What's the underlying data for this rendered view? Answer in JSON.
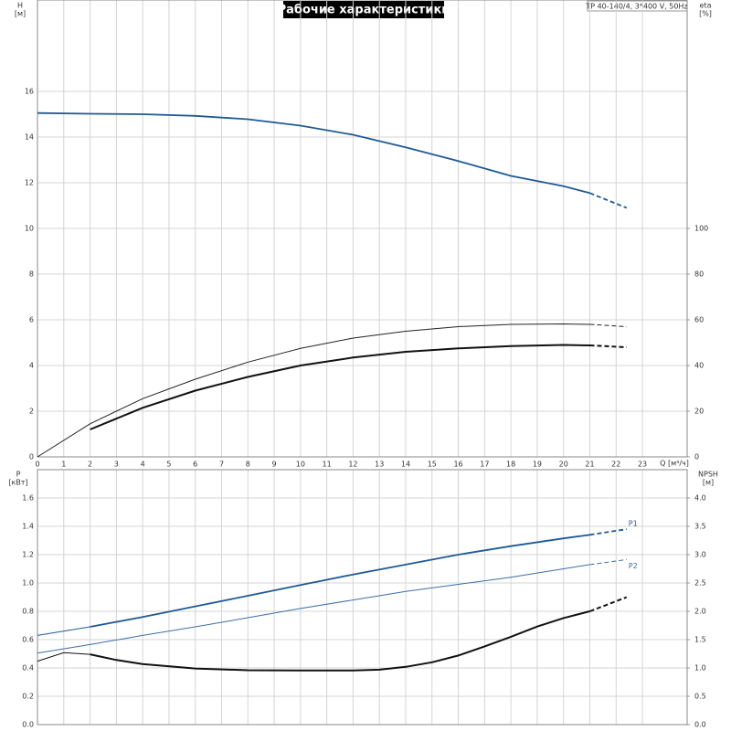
{
  "chart_data": [
    {
      "type": "line",
      "title": "Рабочие характеристики",
      "subtitle": "TP 40-140/4, 3*400 V, 50Hz",
      "y_label": "H",
      "y_unit": "[м]",
      "y2_label": "eta",
      "y2_unit": "[%]",
      "x_label": "Q [м³/ч]",
      "xlim": [
        0,
        24.7
      ],
      "xticks": [
        0,
        1,
        2,
        3,
        4,
        5,
        6,
        7,
        8,
        9,
        10,
        11,
        12,
        13,
        14,
        15,
        16,
        17,
        18,
        19,
        20,
        21,
        22,
        23
      ],
      "ylim": [
        0,
        20
      ],
      "yticks": [
        0,
        2,
        4,
        6,
        8,
        10,
        12,
        14,
        16
      ],
      "y2lim": [
        0,
        200
      ],
      "y2ticks": [
        0,
        20,
        40,
        60,
        80,
        100
      ],
      "grid": true,
      "series": [
        {
          "color": "#1f5a96",
          "segments": [
            {
              "x": [
                0,
                2,
                4,
                6,
                8,
                10,
                12,
                14,
                16,
                18,
                20,
                21
              ],
              "values": [
                15.05,
                15.02,
                15.0,
                14.93,
                14.78,
                14.5,
                14.1,
                13.55,
                12.95,
                12.3,
                11.85,
                11.55
              ],
              "width": 1.8,
              "dash": false
            },
            {
              "x": [
                21,
                22.4
              ],
              "values": [
                11.55,
                10.9
              ],
              "width": 1.8,
              "dash": true
            }
          ]
        },
        {
          "color": "#222222",
          "axis": "y2",
          "segments": [
            {
              "x": [
                0,
                2,
                4,
                6,
                8,
                10,
                12,
                14,
                16,
                18,
                20,
                21
              ],
              "values": [
                0,
                14.5,
                25.5,
                34,
                41.5,
                47.5,
                52,
                55,
                57,
                58,
                58.2,
                58
              ],
              "width": 1,
              "dash": false
            },
            {
              "x": [
                21,
                22.4
              ],
              "values": [
                58,
                57
              ],
              "width": 1,
              "dash": true
            }
          ]
        },
        {
          "color": "#111111",
          "axis": "y2",
          "segments": [
            {
              "x": [
                2,
                4,
                6,
                8,
                10,
                12,
                14,
                16,
                18,
                20,
                21
              ],
              "values": [
                12,
                21.5,
                29,
                35,
                40,
                43.5,
                46,
                47.5,
                48.5,
                49,
                48.8
              ],
              "width": 2,
              "dash": false
            },
            {
              "x": [
                21,
                22.4
              ],
              "values": [
                48.8,
                48
              ],
              "width": 2,
              "dash": true
            }
          ]
        }
      ]
    },
    {
      "type": "line",
      "y_label": "P",
      "y_unit": "[кВт]",
      "y2_label": "NPSH",
      "y2_unit": "[м]",
      "ylim": [
        0,
        1.8
      ],
      "yticks": [
        {
          "value": 0,
          "label": "0.0"
        },
        0.2,
        0.4,
        0.6,
        0.8,
        {
          "value": 1,
          "label": "1.0"
        },
        1.2,
        1.4,
        1.6
      ],
      "y2lim": [
        0,
        4.5
      ],
      "y2ticks": [
        {
          "value": 0,
          "label": "0.0"
        },
        0.5,
        {
          "value": 1,
          "label": "1.0"
        },
        1.5,
        {
          "value": 2,
          "label": "2.0"
        },
        2.5,
        {
          "value": 3,
          "label": "3.0"
        },
        3.5,
        {
          "value": 4,
          "label": "4.0"
        }
      ],
      "grid": true,
      "series": [
        {
          "name": "P1",
          "color": "#1f5a96",
          "segments": [
            {
              "x": [
                0,
                2
              ],
              "values": [
                0.63,
                0.69
              ],
              "width": 1,
              "dash": false
            },
            {
              "x": [
                2,
                4,
                6,
                8,
                10,
                12,
                14,
                16,
                18,
                20,
                21
              ],
              "values": [
                0.69,
                0.76,
                0.835,
                0.91,
                0.985,
                1.06,
                1.13,
                1.2,
                1.26,
                1.315,
                1.34
              ],
              "width": 1.8,
              "dash": false
            },
            {
              "x": [
                21,
                22.4
              ],
              "values": [
                1.34,
                1.38
              ],
              "width": 1.8,
              "dash": true
            }
          ]
        },
        {
          "name": "P2",
          "color": "#3a6fa8",
          "segments": [
            {
              "x": [
                0,
                2,
                4,
                6,
                8,
                10,
                12,
                14,
                16,
                18,
                20,
                21
              ],
              "values": [
                0.505,
                0.565,
                0.63,
                0.69,
                0.755,
                0.82,
                0.88,
                0.94,
                0.99,
                1.04,
                1.1,
                1.13
              ],
              "width": 1,
              "dash": false
            },
            {
              "x": [
                21,
                22.4
              ],
              "values": [
                1.13,
                1.165
              ],
              "width": 1,
              "dash": true
            }
          ]
        },
        {
          "color": "#111111",
          "axis": "y2",
          "segments": [
            {
              "x": [
                0,
                1,
                2
              ],
              "values": [
                1.12,
                1.27,
                1.24
              ],
              "width": 1,
              "dash": false
            },
            {
              "x": [
                2,
                3,
                4,
                6,
                8,
                10,
                12,
                13,
                14,
                15,
                16,
                17,
                18,
                19,
                20,
                21
              ],
              "values": [
                1.24,
                1.14,
                1.07,
                0.99,
                0.96,
                0.955,
                0.955,
                0.97,
                1.02,
                1.1,
                1.22,
                1.38,
                1.55,
                1.73,
                1.88,
                2.0
              ],
              "width": 2,
              "dash": false
            },
            {
              "x": [
                21,
                22.4
              ],
              "values": [
                2.0,
                2.25
              ],
              "width": 2,
              "dash": true
            }
          ]
        }
      ]
    }
  ]
}
